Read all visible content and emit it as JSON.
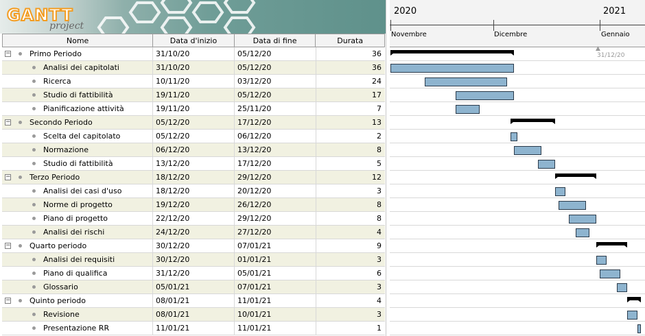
{
  "app": {
    "logo_text": "GANTT project"
  },
  "columns": {
    "name": "Nome",
    "start": "Data d'inizio",
    "end": "Data di fine",
    "duration": "Durata"
  },
  "tasks": [
    {
      "name": "Primo Periodo",
      "start": "31/10/20",
      "end": "05/12/20",
      "duration": "36",
      "group": true
    },
    {
      "name": "Analisi dei capitolati",
      "start": "31/10/20",
      "end": "05/12/20",
      "duration": "36",
      "group": false
    },
    {
      "name": "Ricerca",
      "start": "10/11/20",
      "end": "03/12/20",
      "duration": "24",
      "group": false
    },
    {
      "name": "Studio di fattibilità",
      "start": "19/11/20",
      "end": "05/12/20",
      "duration": "17",
      "group": false
    },
    {
      "name": "Pianificazione attività",
      "start": "19/11/20",
      "end": "25/11/20",
      "duration": "7",
      "group": false
    },
    {
      "name": "Secondo Periodo",
      "start": "05/12/20",
      "end": "17/12/20",
      "duration": "13",
      "group": true
    },
    {
      "name": "Scelta del capitolato",
      "start": "05/12/20",
      "end": "06/12/20",
      "duration": "2",
      "group": false
    },
    {
      "name": "Normazione",
      "start": "06/12/20",
      "end": "13/12/20",
      "duration": "8",
      "group": false
    },
    {
      "name": "Studio di fattibilità",
      "start": "13/12/20",
      "end": "17/12/20",
      "duration": "5",
      "group": false
    },
    {
      "name": "Terzo Periodo",
      "start": "18/12/20",
      "end": "29/12/20",
      "duration": "12",
      "group": true
    },
    {
      "name": "Analisi dei casi d'uso",
      "start": "18/12/20",
      "end": "20/12/20",
      "duration": "3",
      "group": false
    },
    {
      "name": "Norme di progetto",
      "start": "19/12/20",
      "end": "26/12/20",
      "duration": "8",
      "group": false
    },
    {
      "name": "Piano di progetto",
      "start": "22/12/20",
      "end": "29/12/20",
      "duration": "8",
      "group": false
    },
    {
      "name": "Analisi dei rischi",
      "start": "24/12/20",
      "end": "27/12/20",
      "duration": "4",
      "group": false
    },
    {
      "name": "Quarto periodo",
      "start": "30/12/20",
      "end": "07/01/21",
      "duration": "9",
      "group": true
    },
    {
      "name": "Analisi dei requisiti",
      "start": "30/12/20",
      "end": "01/01/21",
      "duration": "3",
      "group": false
    },
    {
      "name": "Piano di qualifica",
      "start": "31/12/20",
      "end": "05/01/21",
      "duration": "6",
      "group": false
    },
    {
      "name": "Glossario",
      "start": "05/01/21",
      "end": "07/01/21",
      "duration": "3",
      "group": false
    },
    {
      "name": "Quinto periodo",
      "start": "08/01/21",
      "end": "11/01/21",
      "duration": "4",
      "group": true
    },
    {
      "name": "Revisione",
      "start": "08/01/21",
      "end": "10/01/21",
      "duration": "3",
      "group": false
    },
    {
      "name": "Presentazione RR",
      "start": "11/01/21",
      "end": "11/01/21",
      "duration": "1",
      "group": false
    }
  ],
  "timeline": {
    "years": [
      "2020",
      "2021"
    ],
    "months": [
      "Novembre",
      "Dicembre",
      "Gennaio"
    ],
    "today_label": "31/12/20"
  },
  "colors": {
    "task_bar": "#8eb4cf",
    "task_bar_border": "#2a3a4a",
    "summary_bar": "#000000",
    "alt_row": "#f1f1e1"
  }
}
